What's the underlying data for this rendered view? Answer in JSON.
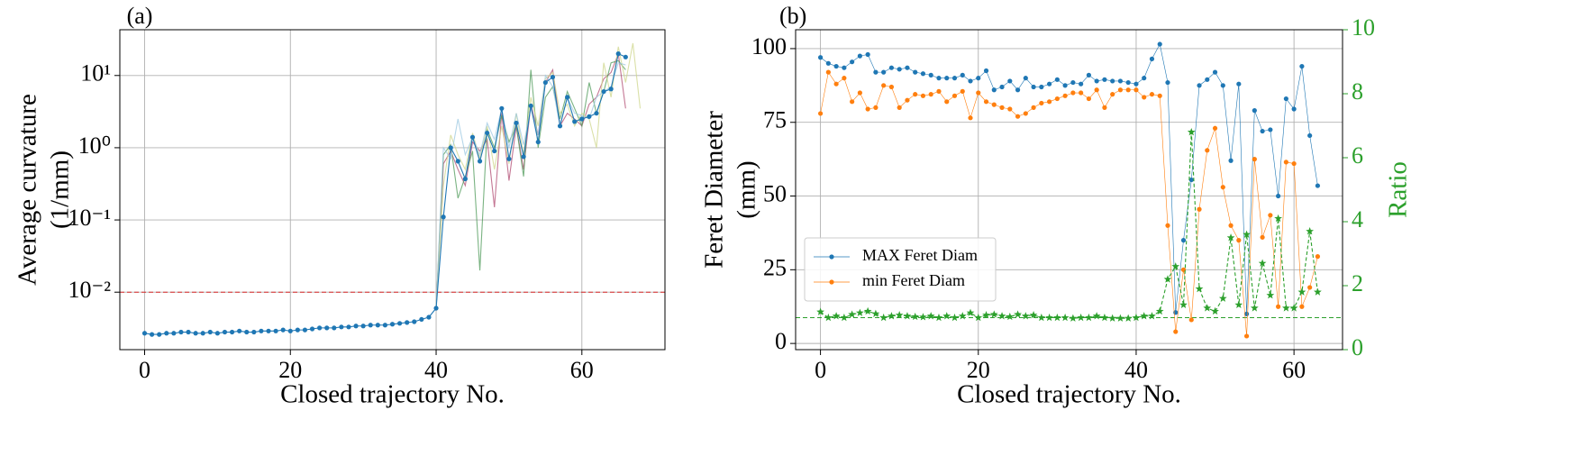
{
  "chart_data": [
    {
      "type": "line",
      "panel": "(a)",
      "xlabel": "Closed trajectory No.",
      "ylabel": [
        "Average curvature",
        "(1/mm)"
      ],
      "ylog": true,
      "grid": true,
      "xlim": [
        -3.4,
        71.4
      ],
      "xticks": [
        0,
        20,
        40,
        60
      ],
      "ylim": [
        0.0016,
        43
      ],
      "yticks": [
        {
          "value": 0.01,
          "label": "10⁻²"
        },
        {
          "value": 0.1,
          "label": "10⁻¹"
        },
        {
          "value": 1,
          "label": "10⁰"
        },
        {
          "value": 10,
          "label": "10¹"
        }
      ],
      "hline": {
        "value": 0.01,
        "color": "#d62728",
        "linestyle": "dashed"
      },
      "x": [
        0,
        1,
        2,
        3,
        4,
        5,
        6,
        7,
        8,
        9,
        10,
        11,
        12,
        13,
        14,
        15,
        16,
        17,
        18,
        19,
        20,
        21,
        22,
        23,
        24,
        25,
        26,
        27,
        28,
        29,
        30,
        31,
        32,
        33,
        34,
        35,
        36,
        37,
        38,
        39,
        40,
        41,
        42,
        43,
        44,
        45,
        46,
        47,
        48,
        49,
        50,
        51,
        52,
        53,
        54,
        55,
        56,
        57,
        58,
        59,
        60,
        61,
        62,
        63,
        64,
        65,
        66,
        67,
        68
      ],
      "series": [
        {
          "color": "#b04a70",
          "marker": "none",
          "values": [
            null,
            null,
            null,
            null,
            null,
            null,
            null,
            null,
            null,
            null,
            null,
            null,
            null,
            null,
            null,
            null,
            null,
            null,
            null,
            null,
            null,
            null,
            null,
            null,
            null,
            null,
            null,
            null,
            null,
            null,
            null,
            null,
            null,
            null,
            null,
            null,
            null,
            null,
            null,
            null,
            0.006,
            0.6,
            0.9,
            0.5,
            0.3,
            1.2,
            0.9,
            1.3,
            0.15,
            3,
            0.35,
            2,
            0.5,
            4,
            1.5,
            8,
            12,
            2,
            3,
            2.5,
            2,
            4,
            5,
            9,
            11,
            20,
            3.5,
            null,
            null
          ]
        },
        {
          "color": "#4e9a58",
          "marker": "none",
          "values": [
            null,
            null,
            null,
            null,
            null,
            null,
            null,
            null,
            null,
            null,
            null,
            null,
            null,
            null,
            null,
            null,
            null,
            null,
            null,
            null,
            null,
            null,
            null,
            null,
            null,
            null,
            null,
            null,
            null,
            null,
            null,
            null,
            null,
            null,
            null,
            null,
            null,
            null,
            null,
            null,
            0.006,
            0.8,
            1.1,
            0.2,
            0.4,
            0.9,
            0.02,
            1.8,
            1,
            2.8,
            1.2,
            2,
            0.4,
            12,
            1,
            5,
            7,
            2.5,
            6,
            3.5,
            2,
            8,
            3,
            6,
            15,
            16,
            12,
            null,
            null
          ]
        },
        {
          "color": "#cdd68a",
          "marker": "none",
          "values": [
            null,
            null,
            null,
            null,
            null,
            null,
            null,
            null,
            null,
            null,
            null,
            null,
            null,
            null,
            null,
            null,
            null,
            null,
            null,
            null,
            null,
            null,
            null,
            null,
            null,
            null,
            null,
            null,
            null,
            null,
            null,
            null,
            null,
            null,
            null,
            null,
            null,
            null,
            null,
            null,
            0.006,
            0.3,
            1.5,
            0.8,
            0.5,
            1.6,
            0.7,
            2,
            0.5,
            2,
            0.6,
            3,
            0.8,
            5,
            2,
            9,
            11,
            3,
            4,
            2,
            3,
            2.5,
            1,
            15,
            5,
            25,
            8,
            28,
            3.5
          ]
        },
        {
          "color": "#9cc8e2",
          "marker": "none",
          "values": [
            null,
            null,
            null,
            null,
            null,
            null,
            null,
            null,
            null,
            null,
            null,
            null,
            null,
            null,
            null,
            null,
            null,
            null,
            null,
            null,
            null,
            null,
            null,
            null,
            null,
            null,
            null,
            null,
            null,
            null,
            null,
            null,
            null,
            null,
            null,
            null,
            null,
            null,
            null,
            null,
            0.006,
            1.0,
            0.7,
            2.5,
            0.8,
            1.4,
            0.8,
            2.2,
            1.3,
            3.5,
            1,
            3,
            1.1,
            3.5,
            1.5,
            10,
            7,
            2,
            5,
            3,
            2.8,
            2.5,
            5,
            6,
            7,
            15,
            14,
            null,
            null
          ]
        },
        {
          "color": "#1f77b4",
          "marker": "circle",
          "values": [
            0.0027,
            0.0026,
            0.0026,
            0.0027,
            0.0027,
            0.0028,
            0.0028,
            0.0027,
            0.0027,
            0.0028,
            0.0027,
            0.0028,
            0.0028,
            0.0029,
            0.0028,
            0.0028,
            0.0029,
            0.0029,
            0.0029,
            0.003,
            0.0029,
            0.003,
            0.003,
            0.0031,
            0.0032,
            0.0032,
            0.0032,
            0.0033,
            0.0033,
            0.0034,
            0.0034,
            0.0035,
            0.0035,
            0.0035,
            0.0036,
            0.0037,
            0.0038,
            0.0039,
            0.0042,
            0.0045,
            0.006,
            0.11,
            1.0,
            0.65,
            0.37,
            1.4,
            0.65,
            1.6,
            0.9,
            3.5,
            0.7,
            2.2,
            0.75,
            3.8,
            1.2,
            8,
            9.5,
            2,
            5,
            2.3,
            2.5,
            2.7,
            3,
            6,
            6.5,
            20,
            18,
            null,
            null
          ]
        }
      ]
    },
    {
      "type": "line",
      "panel": "(b)",
      "xlabel": "Closed trajectory No.",
      "ylabel": [
        "Feret Diameter",
        "(mm)"
      ],
      "y2label": "Ratio",
      "y2color": "#2ca02c",
      "ylog": false,
      "grid": true,
      "legend": {
        "loc": "lower left"
      },
      "xlim": [
        -3.15,
        66.15
      ],
      "xticks": [
        0,
        20,
        40,
        60
      ],
      "ylim": [
        -2.1,
        106.4
      ],
      "yticks": [
        0,
        25,
        50,
        75,
        100
      ],
      "y2lim": [
        0,
        10
      ],
      "y2ticks": [
        0,
        2,
        4,
        6,
        8,
        10
      ],
      "hline": {
        "value": 1,
        "axis": "y2",
        "color": "#2ca02c",
        "linestyle": "dashed"
      },
      "x": [
        0,
        1,
        2,
        3,
        4,
        5,
        6,
        7,
        8,
        9,
        10,
        11,
        12,
        13,
        14,
        15,
        16,
        17,
        18,
        19,
        20,
        21,
        22,
        23,
        24,
        25,
        26,
        27,
        28,
        29,
        30,
        31,
        32,
        33,
        34,
        35,
        36,
        37,
        38,
        39,
        40,
        41,
        42,
        43,
        44,
        45,
        46,
        47,
        48,
        49,
        50,
        51,
        52,
        53,
        54,
        55,
        56,
        57,
        58,
        59,
        60,
        61,
        62,
        63
      ],
      "series": [
        {
          "name": "MAX Feret Diam",
          "color": "#1f77b4",
          "marker": "circle",
          "values": [
            97,
            95,
            94,
            93.5,
            95.5,
            97.5,
            98,
            92,
            92,
            93.5,
            93,
            93.5,
            92,
            91.5,
            91,
            90,
            90,
            90,
            91,
            89,
            90,
            92.5,
            86,
            87,
            89,
            86,
            90,
            87,
            87,
            88,
            89.5,
            87.5,
            88.5,
            88,
            91,
            89,
            89.5,
            89,
            89,
            88.5,
            88,
            90,
            96.5,
            101.5,
            88.5,
            10.5,
            35,
            55.5,
            87.5,
            89.5,
            92,
            87.5,
            62,
            88,
            10,
            79,
            72,
            72.5,
            50,
            83,
            79.5,
            94,
            70.5,
            53.5
          ]
        },
        {
          "name": "min Feret Diam",
          "color": "#ff7f0e",
          "marker": "circle",
          "values": [
            78,
            92,
            88,
            90,
            82,
            85,
            79.5,
            80,
            87.5,
            87,
            80,
            82.5,
            84.5,
            84,
            84.5,
            85.5,
            82,
            84,
            85.5,
            76.5,
            85,
            82,
            81,
            80,
            79.5,
            77,
            78,
            80,
            81.5,
            82,
            83,
            84,
            85,
            85,
            83,
            86,
            80,
            84.5,
            86,
            86,
            86,
            83.5,
            84.5,
            84,
            40,
            4,
            25,
            8,
            45.5,
            65.5,
            73,
            53,
            40,
            35,
            2.5,
            62.5,
            36,
            43.5,
            12.5,
            61.5,
            61,
            12.5,
            19,
            29.5
          ]
        },
        {
          "color": "#2ca02c",
          "marker": "star",
          "linestyle": "dashed",
          "axis": "y2",
          "values": [
            1.18,
            1.0,
            1.05,
            1.0,
            1.1,
            1.15,
            1.2,
            1.12,
            1.0,
            1.05,
            1.08,
            1.05,
            1.03,
            1.02,
            1.05,
            1.0,
            1.05,
            1.0,
            1.05,
            1.15,
            1.0,
            1.08,
            1.1,
            1.05,
            1.03,
            1.1,
            1.05,
            1.08,
            1.0,
            1.0,
            1.0,
            1.0,
            0.98,
            1.0,
            1.0,
            1.05,
            1.0,
            0.98,
            0.98,
            0.98,
            1.0,
            1.05,
            1.05,
            1.2,
            2.2,
            2.6,
            1.4,
            6.8,
            1.9,
            1.3,
            1.2,
            1.6,
            3.5,
            1.4,
            3.6,
            1.3,
            2.7,
            1.7,
            4.1,
            1.3,
            1.3,
            1.8,
            3.7,
            1.8
          ]
        }
      ]
    }
  ]
}
